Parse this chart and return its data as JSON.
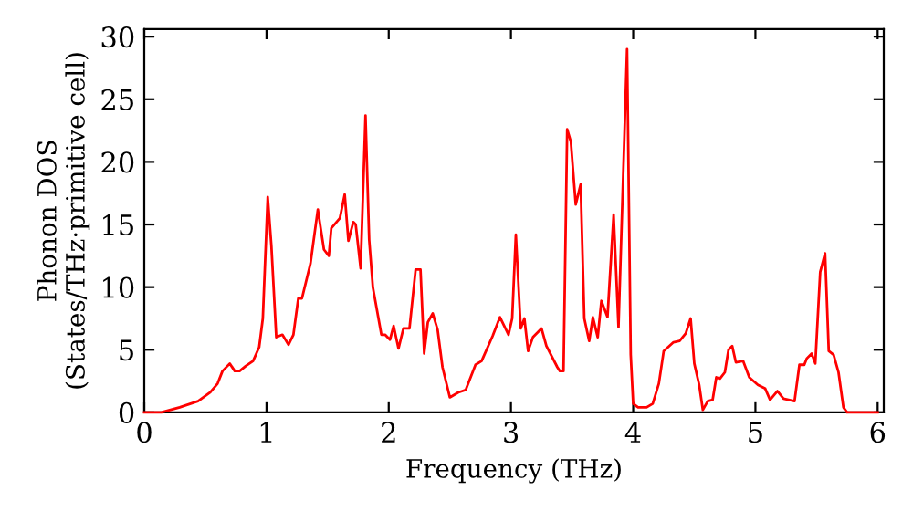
{
  "chart_data": {
    "type": "line",
    "xlabel": "Frequency (THz)",
    "ylabel": "Phonon DOS\n(States/THz·primitive cell)",
    "xlim": [
      0,
      6.05
    ],
    "ylim": [
      0,
      30.6
    ],
    "xticks": [
      0,
      1,
      2,
      3,
      4,
      5,
      6
    ],
    "yticks": [
      0,
      5,
      10,
      15,
      20,
      25,
      30
    ],
    "grid": false,
    "legend": false,
    "marker": "none",
    "line_style": "solid",
    "series": [
      {
        "color": "#ff0000",
        "x": [
          0,
          0.14,
          0.29,
          0.44,
          0.54,
          0.6,
          0.64,
          0.7,
          0.74,
          0.78,
          0.83,
          0.89,
          0.94,
          0.97,
          1.01,
          1.04,
          1.08,
          1.13,
          1.18,
          1.22,
          1.26,
          1.29,
          1.36,
          1.42,
          1.47,
          1.51,
          1.53,
          1.6,
          1.64,
          1.67,
          1.71,
          1.73,
          1.77,
          1.81,
          1.84,
          1.87,
          1.94,
          1.97,
          2.01,
          2.04,
          2.08,
          2.12,
          2.17,
          2.22,
          2.26,
          2.29,
          2.32,
          2.36,
          2.4,
          2.44,
          2.5,
          2.57,
          2.63,
          2.71,
          2.76,
          2.85,
          2.91,
          2.98,
          3.01,
          3.04,
          3.08,
          3.11,
          3.14,
          3.18,
          3.25,
          3.29,
          3.38,
          3.4,
          3.43,
          3.46,
          3.49,
          3.53,
          3.57,
          3.6,
          3.64,
          3.67,
          3.71,
          3.74,
          3.79,
          3.84,
          3.88,
          3.95,
          3.98,
          4.0,
          4.04,
          4.11,
          4.16,
          4.21,
          4.25,
          4.33,
          4.38,
          4.43,
          4.47,
          4.5,
          4.54,
          4.57,
          4.61,
          4.65,
          4.68,
          4.71,
          4.75,
          4.78,
          4.81,
          4.84,
          4.9,
          4.95,
          5.02,
          5.08,
          5.12,
          5.18,
          5.23,
          5.32,
          5.36,
          5.4,
          5.42,
          5.46,
          5.49,
          5.53,
          5.57,
          5.6,
          5.64,
          5.68,
          5.72,
          5.75,
          6.0
        ],
        "values": [
          0,
          0,
          0.4,
          0.9,
          1.6,
          2.3,
          3.3,
          3.9,
          3.3,
          3.3,
          3.7,
          4.1,
          5.2,
          7.5,
          17.2,
          13.3,
          6.0,
          6.2,
          5.4,
          6.2,
          9.1,
          9.1,
          11.9,
          16.2,
          13.0,
          12.5,
          14.7,
          15.5,
          17.4,
          13.7,
          15.2,
          15.0,
          11.5,
          23.7,
          13.8,
          10.0,
          6.2,
          6.2,
          5.8,
          6.9,
          5.1,
          6.7,
          6.7,
          11.4,
          11.4,
          4.7,
          7.2,
          7.9,
          6.6,
          3.6,
          1.2,
          1.6,
          1.8,
          3.8,
          4.1,
          6.1,
          7.6,
          6.2,
          7.5,
          14.2,
          6.7,
          7.5,
          4.9,
          6.0,
          6.7,
          5.3,
          3.6,
          3.3,
          3.3,
          22.6,
          21.6,
          16.6,
          18.2,
          7.5,
          5.7,
          7.6,
          6.0,
          8.9,
          7.6,
          15.8,
          6.8,
          29.0,
          4.6,
          0.7,
          0.4,
          0.4,
          0.7,
          2.3,
          4.9,
          5.6,
          5.7,
          6.3,
          7.5,
          3.9,
          2.2,
          0.2,
          0.9,
          1.0,
          2.8,
          2.7,
          3.2,
          5.0,
          5.3,
          4.0,
          4.1,
          2.8,
          2.2,
          1.9,
          1.0,
          1.7,
          1.1,
          0.9,
          3.8,
          3.8,
          4.3,
          4.7,
          3.9,
          11.2,
          12.7,
          4.9,
          4.6,
          3.2,
          0.4,
          0,
          0
        ]
      }
    ]
  }
}
